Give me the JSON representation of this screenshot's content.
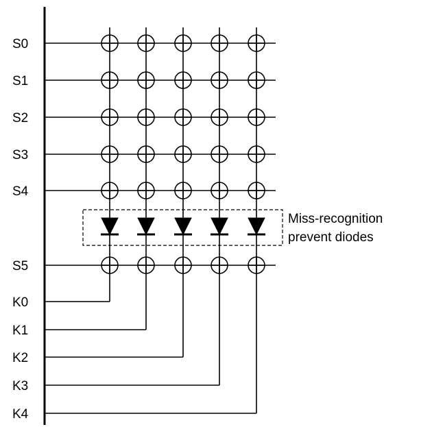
{
  "scan_lines": [
    "S0",
    "S1",
    "S2",
    "S3",
    "S4",
    "S5"
  ],
  "key_lines": [
    "K0",
    "K1",
    "K2",
    "K3",
    "K4"
  ],
  "annotation": {
    "line1": "Miss-recognition",
    "line2": "prevent diodes"
  }
}
